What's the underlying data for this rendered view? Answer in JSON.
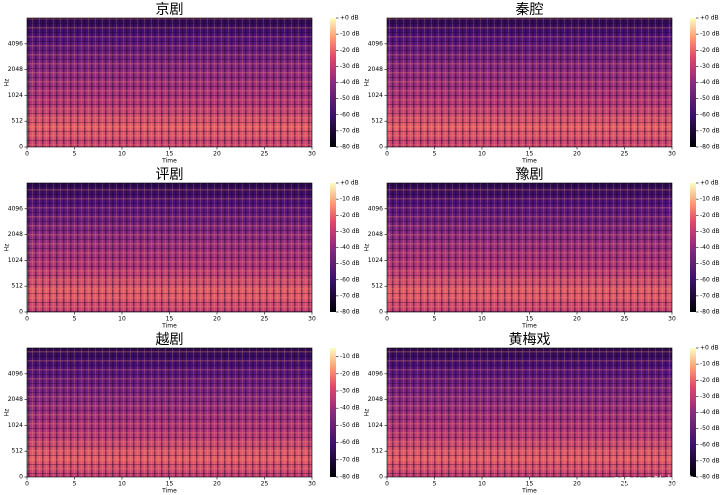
{
  "chart_data": [
    {
      "type": "spectrogram",
      "title": "京剧",
      "xlabel": "Time",
      "ylabel": "Hz",
      "xlim": [
        0,
        30
      ],
      "xticks": [
        0,
        5,
        10,
        15,
        20,
        25,
        30
      ],
      "ylim": [
        0,
        8192
      ],
      "yticks": [
        0,
        512,
        1024,
        2048,
        4096
      ],
      "yscale": "symlog",
      "colormap": "magma",
      "colorbar": {
        "lim": [
          -80,
          0
        ],
        "ticks": [
          {
            "value": 0,
            "label": "+0 dB"
          },
          {
            "value": -10,
            "label": "-10 dB"
          },
          {
            "value": -20,
            "label": "-20 dB"
          },
          {
            "value": -30,
            "label": "-30 dB"
          },
          {
            "value": -40,
            "label": "-40 dB"
          },
          {
            "value": -50,
            "label": "-50 dB"
          },
          {
            "value": -60,
            "label": "-60 dB"
          },
          {
            "value": -70,
            "label": "-70 dB"
          },
          {
            "value": -80,
            "label": "-80 dB"
          }
        ]
      }
    },
    {
      "type": "spectrogram",
      "title": "秦腔",
      "xlabel": "Time",
      "ylabel": "Hz",
      "xlim": [
        0,
        30
      ],
      "xticks": [
        0,
        5,
        10,
        15,
        20,
        25,
        30
      ],
      "ylim": [
        0,
        8192
      ],
      "yticks": [
        0,
        512,
        1024,
        2048,
        4096
      ],
      "yscale": "symlog",
      "colormap": "magma",
      "colorbar": {
        "lim": [
          -80,
          0
        ],
        "ticks": [
          {
            "value": 0,
            "label": "+0 dB"
          },
          {
            "value": -10,
            "label": "-10 dB"
          },
          {
            "value": -20,
            "label": "-20 dB"
          },
          {
            "value": -30,
            "label": "-30 dB"
          },
          {
            "value": -40,
            "label": "-40 dB"
          },
          {
            "value": -50,
            "label": "-50 dB"
          },
          {
            "value": -60,
            "label": "-60 dB"
          },
          {
            "value": -70,
            "label": "-70 dB"
          },
          {
            "value": -80,
            "label": "-80 dB"
          }
        ]
      }
    },
    {
      "type": "spectrogram",
      "title": "评剧",
      "xlabel": "Time",
      "ylabel": "Hz",
      "xlim": [
        0,
        30
      ],
      "xticks": [
        0,
        5,
        10,
        15,
        20,
        25,
        30
      ],
      "ylim": [
        0,
        8192
      ],
      "yticks": [
        0,
        512,
        1024,
        2048,
        4096
      ],
      "yscale": "symlog",
      "colormap": "magma",
      "colorbar": {
        "lim": [
          -80,
          0
        ],
        "ticks": [
          {
            "value": 0,
            "label": "+0 dB"
          },
          {
            "value": -10,
            "label": "-10 dB"
          },
          {
            "value": -20,
            "label": "-20 dB"
          },
          {
            "value": -30,
            "label": "-30 dB"
          },
          {
            "value": -40,
            "label": "-40 dB"
          },
          {
            "value": -50,
            "label": "-50 dB"
          },
          {
            "value": -60,
            "label": "-60 dB"
          },
          {
            "value": -70,
            "label": "-70 dB"
          },
          {
            "value": -80,
            "label": "-80 dB"
          }
        ]
      }
    },
    {
      "type": "spectrogram",
      "title": "豫剧",
      "xlabel": "Time",
      "ylabel": "Hz",
      "xlim": [
        0,
        30
      ],
      "xticks": [
        0,
        5,
        10,
        15,
        20,
        25,
        30
      ],
      "ylim": [
        0,
        8192
      ],
      "yticks": [
        0,
        512,
        1024,
        2048,
        4096
      ],
      "yscale": "symlog",
      "colormap": "magma",
      "colorbar": {
        "lim": [
          -80,
          0
        ],
        "ticks": [
          {
            "value": 0,
            "label": "+0 dB"
          },
          {
            "value": -10,
            "label": "-10 dB"
          },
          {
            "value": -20,
            "label": "-20 dB"
          },
          {
            "value": -30,
            "label": "-30 dB"
          },
          {
            "value": -40,
            "label": "-40 dB"
          },
          {
            "value": -50,
            "label": "-50 dB"
          },
          {
            "value": -60,
            "label": "-60 dB"
          },
          {
            "value": -70,
            "label": "-70 dB"
          },
          {
            "value": -80,
            "label": "-80 dB"
          }
        ]
      }
    },
    {
      "type": "spectrogram",
      "title": "越剧",
      "xlabel": "Time",
      "ylabel": "Hz",
      "xlim": [
        0,
        30
      ],
      "xticks": [
        0,
        5,
        10,
        15,
        20,
        25,
        30
      ],
      "ylim": [
        0,
        8192
      ],
      "yticks": [
        0,
        512,
        1024,
        2048,
        4096
      ],
      "yscale": "symlog",
      "colormap": "magma",
      "colorbar": {
        "lim": [
          -80,
          -5
        ],
        "ticks": [
          {
            "value": -10,
            "label": "-10 dB"
          },
          {
            "value": -20,
            "label": "-20 dB"
          },
          {
            "value": -30,
            "label": "-30 dB"
          },
          {
            "value": -40,
            "label": "-40 dB"
          },
          {
            "value": -50,
            "label": "-50 dB"
          },
          {
            "value": -60,
            "label": "-60 dB"
          },
          {
            "value": -70,
            "label": "-70 dB"
          },
          {
            "value": -80,
            "label": "-80 dB"
          }
        ]
      }
    },
    {
      "type": "spectrogram",
      "title": "黄梅戏",
      "xlabel": "Time",
      "ylabel": "Hz",
      "xlim": [
        0,
        30
      ],
      "xticks": [
        0,
        5,
        10,
        15,
        20,
        25,
        30
      ],
      "ylim": [
        0,
        8192
      ],
      "yticks": [
        0,
        512,
        1024,
        2048,
        4096
      ],
      "yscale": "symlog",
      "colormap": "magma",
      "colorbar": {
        "lim": [
          -80,
          0
        ],
        "ticks": [
          {
            "value": 0,
            "label": "+0 dB"
          },
          {
            "value": -10,
            "label": "-10 dB"
          },
          {
            "value": -20,
            "label": "-20 dB"
          },
          {
            "value": -30,
            "label": "-30 dB"
          },
          {
            "value": -40,
            "label": "-40 dB"
          },
          {
            "value": -50,
            "label": "-50 dB"
          },
          {
            "value": -60,
            "label": "-60 dB"
          },
          {
            "value": -70,
            "label": "-70 dB"
          },
          {
            "value": -80,
            "label": "-80 dB"
          }
        ]
      }
    }
  ],
  "watermark": "CSDN @叶之生荣"
}
